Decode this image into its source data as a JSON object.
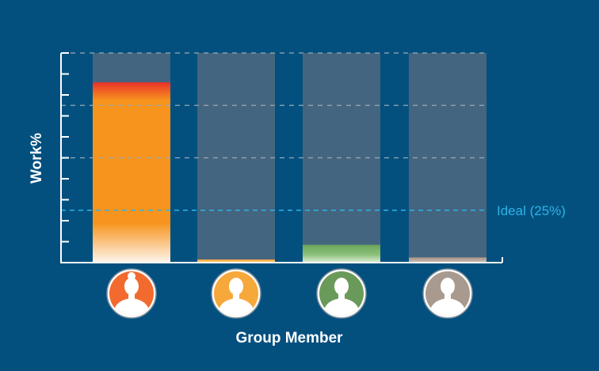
{
  "chart_data": {
    "type": "bar",
    "xlabel": "Group Member",
    "ylabel": "Work%",
    "ylim": [
      0,
      100
    ],
    "grid": true,
    "categories": [
      "",
      "",
      "",
      ""
    ],
    "values": [
      86,
      1.5,
      8.5,
      2.5
    ],
    "reference_line": {
      "label": "Ideal (25%)",
      "value": 25,
      "color": "#2fb3e6"
    },
    "series_colors": [
      "#f7941d",
      "#f5b041",
      "#6aa55a",
      "#ab9b91"
    ],
    "avatar_colors": [
      "#f26a2e",
      "#f7a83b",
      "#6a9a5a",
      "#a99a90"
    ]
  }
}
